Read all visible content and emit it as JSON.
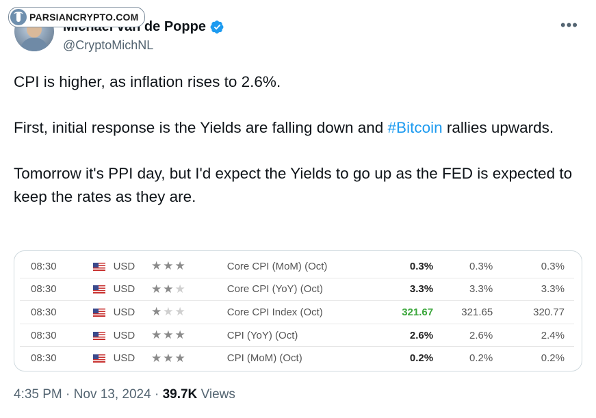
{
  "watermark": {
    "text": "PARSIANCRYPTO.COM"
  },
  "author": {
    "name": "Michael van de Poppe",
    "handle": "@CryptoMichNL",
    "verified": true
  },
  "tweet": {
    "line1": "CPI is higher, as inflation rises to 2.6%.",
    "line2_before": "First, initial response is the Yields are falling down and ",
    "hashtag": "#Bitcoin",
    "line2_after": " rallies upwards.",
    "line3": "Tomorrow it's PPI day, but I'd expect the Yields to go up as the FED is expected to keep the rates as they are."
  },
  "calendar": {
    "rows": [
      {
        "time": "08:30",
        "currency": "USD",
        "importance": 3,
        "event": "Core CPI (MoM) (Oct)",
        "actual": "0.3%",
        "forecast": "0.3%",
        "previous": "0.3%",
        "actual_color": "#222222"
      },
      {
        "time": "08:30",
        "currency": "USD",
        "importance": 2,
        "event": "Core CPI (YoY) (Oct)",
        "actual": "3.3%",
        "forecast": "3.3%",
        "previous": "3.3%",
        "actual_color": "#222222"
      },
      {
        "time": "08:30",
        "currency": "USD",
        "importance": 1,
        "event": "Core CPI Index (Oct)",
        "actual": "321.67",
        "forecast": "321.65",
        "previous": "320.77",
        "actual_color": "#3aa63a"
      },
      {
        "time": "08:30",
        "currency": "USD",
        "importance": 3,
        "event": "CPI (YoY) (Oct)",
        "actual": "2.6%",
        "forecast": "2.6%",
        "previous": "2.4%",
        "actual_color": "#222222"
      },
      {
        "time": "08:30",
        "currency": "USD",
        "importance": 3,
        "event": "CPI (MoM) (Oct)",
        "actual": "0.2%",
        "forecast": "0.2%",
        "previous": "0.2%",
        "actual_color": "#222222"
      }
    ]
  },
  "meta": {
    "time": "4:35 PM",
    "separator": "·",
    "date": "Nov 13, 2024",
    "views_count": "39.7K",
    "views_label": "Views"
  },
  "icons": {
    "more": "more-horizontal-icon",
    "verified": "verified-badge-icon",
    "flag": "us-flag-icon",
    "star": "star-icon"
  }
}
